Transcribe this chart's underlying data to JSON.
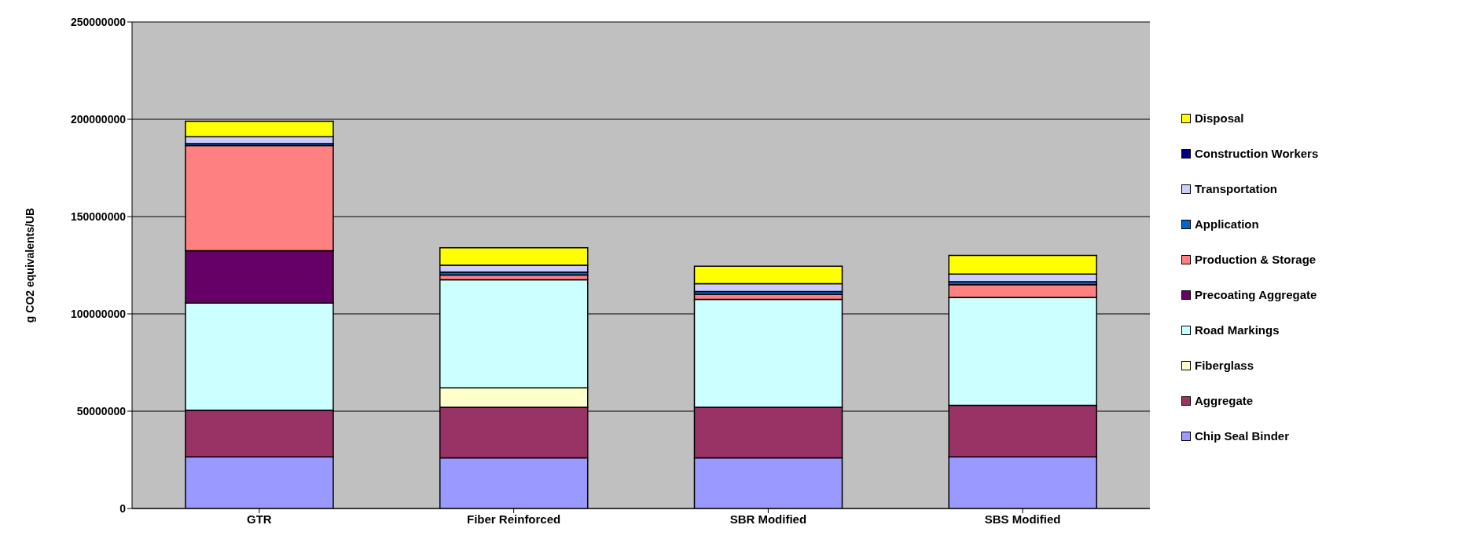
{
  "chart_data": {
    "type": "bar",
    "stacked": true,
    "ylabel": "g CO2 equivalents/UB",
    "categories": [
      "GTR",
      "Fiber Reinforced",
      "SBR Modified",
      "SBS Modified"
    ],
    "series": [
      {
        "name": "Chip Seal Binder",
        "color": "#9999ff",
        "values": [
          26500000,
          26000000,
          26000000,
          26500000
        ]
      },
      {
        "name": "Aggregate",
        "color": "#993366",
        "values": [
          24000000,
          26000000,
          26000000,
          26500000
        ]
      },
      {
        "name": "Fiberglass",
        "color": "#ffffcc",
        "values": [
          0,
          10000000,
          0,
          0
        ]
      },
      {
        "name": "Road Markings",
        "color": "#ccffff",
        "values": [
          55000000,
          55500000,
          55500000,
          55500000
        ]
      },
      {
        "name": "Precoating Aggregate",
        "color": "#660066",
        "values": [
          27000000,
          0,
          0,
          0
        ]
      },
      {
        "name": "Production & Storage",
        "color": "#ff8080",
        "values": [
          54000000,
          2500000,
          2500000,
          6500000
        ]
      },
      {
        "name": "Application",
        "color": "#0066cc",
        "values": [
          1000000,
          1500000,
          1500000,
          1500000
        ]
      },
      {
        "name": "Transportation",
        "color": "#ccccff",
        "values": [
          3500000,
          3500000,
          4000000,
          4000000
        ]
      },
      {
        "name": "Construction Workers",
        "color": "#000080",
        "values": [
          null,
          null,
          null,
          null
        ]
      },
      {
        "name": "Disposal",
        "color": "#ffff00",
        "values": [
          8000000,
          9000000,
          9000000,
          9500000
        ]
      }
    ],
    "ylim": [
      0,
      250000000
    ],
    "yticks": [
      0,
      50000000,
      100000000,
      150000000,
      200000000,
      250000000
    ],
    "grid": "y",
    "legend": "right"
  }
}
